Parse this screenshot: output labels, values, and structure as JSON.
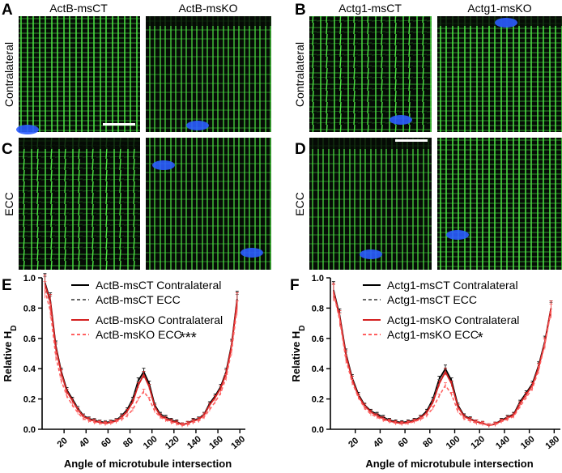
{
  "panel_letters": [
    "A",
    "B",
    "C",
    "D",
    "E",
    "F"
  ],
  "micrograph_columns": [
    "ActB-msCT",
    "ActB-msKO",
    "Actg1-msCT",
    "Actg1-msKO"
  ],
  "micrograph_rows": [
    "Contralateral",
    "ECC"
  ],
  "colors": {
    "microtubules": "#3fd23a",
    "nuclei": "#2b5cff",
    "background": "#050a05",
    "control": "#000000",
    "knockout": "#d42020",
    "control_ecc": "#666666",
    "knockout_ecc": "#ff6060"
  },
  "chart_data": [
    {
      "type": "line",
      "panel": "E",
      "ylabel_main": "Relative H",
      "ylabel_sub": "D",
      "xlabel": "Angle of microtubule intersection",
      "xlim": [
        0,
        185
      ],
      "ylim": [
        0,
        1.0
      ],
      "xticks": [
        "20",
        "40",
        "60",
        "80",
        "100",
        "120",
        "140",
        "160",
        "180"
      ],
      "yticks": [
        "0.0",
        "0.2",
        "0.4",
        "0.6",
        "0.8",
        "1.0"
      ],
      "significance": "***",
      "x": [
        0,
        5,
        10,
        15,
        20,
        25,
        30,
        35,
        40,
        45,
        50,
        55,
        60,
        65,
        70,
        75,
        80,
        85,
        90,
        95,
        100,
        105,
        110,
        115,
        120,
        125,
        130,
        135,
        140,
        145,
        150,
        155,
        160,
        165,
        170,
        175
      ],
      "series": [
        {
          "name": "ActB-msCT Contralateral",
          "color": "#000000",
          "dash": "solid",
          "values": [
            0.97,
            0.85,
            0.55,
            0.38,
            0.26,
            0.2,
            0.14,
            0.09,
            0.07,
            0.06,
            0.05,
            0.045,
            0.05,
            0.06,
            0.09,
            0.13,
            0.2,
            0.32,
            0.38,
            0.3,
            0.16,
            0.1,
            0.08,
            0.06,
            0.05,
            0.03,
            0.04,
            0.06,
            0.07,
            0.1,
            0.17,
            0.22,
            0.28,
            0.38,
            0.56,
            0.86
          ]
        },
        {
          "name": "ActB-msCT ECC",
          "color": "#666666",
          "dash": "dashed",
          "values": [
            0.95,
            0.83,
            0.53,
            0.37,
            0.25,
            0.19,
            0.14,
            0.09,
            0.07,
            0.06,
            0.05,
            0.045,
            0.05,
            0.06,
            0.085,
            0.12,
            0.19,
            0.3,
            0.36,
            0.28,
            0.15,
            0.095,
            0.075,
            0.055,
            0.045,
            0.03,
            0.04,
            0.055,
            0.07,
            0.1,
            0.16,
            0.21,
            0.27,
            0.37,
            0.55,
            0.84
          ]
        },
        {
          "name": "ActB-msKO Contralateral",
          "color": "#d42020",
          "dash": "solid",
          "values": [
            0.96,
            0.84,
            0.54,
            0.37,
            0.25,
            0.19,
            0.13,
            0.085,
            0.065,
            0.055,
            0.045,
            0.04,
            0.045,
            0.055,
            0.08,
            0.12,
            0.18,
            0.29,
            0.36,
            0.28,
            0.15,
            0.09,
            0.07,
            0.055,
            0.045,
            0.03,
            0.04,
            0.055,
            0.065,
            0.095,
            0.16,
            0.21,
            0.27,
            0.37,
            0.55,
            0.85
          ]
        },
        {
          "name": "ActB-msKO ECC",
          "color": "#ff6060",
          "dash": "dashed",
          "values": [
            0.92,
            0.78,
            0.48,
            0.32,
            0.22,
            0.16,
            0.11,
            0.07,
            0.055,
            0.045,
            0.04,
            0.035,
            0.04,
            0.05,
            0.065,
            0.09,
            0.13,
            0.2,
            0.25,
            0.2,
            0.12,
            0.08,
            0.06,
            0.045,
            0.035,
            0.025,
            0.03,
            0.045,
            0.055,
            0.08,
            0.13,
            0.18,
            0.24,
            0.34,
            0.52,
            0.8
          ]
        }
      ]
    },
    {
      "type": "line",
      "panel": "F",
      "ylabel_main": "Relative H",
      "ylabel_sub": "D",
      "xlabel": "Angle of microtubule intersection",
      "xlim": [
        0,
        185
      ],
      "ylim": [
        0,
        1.0
      ],
      "xticks": [
        "20",
        "40",
        "60",
        "80",
        "100",
        "120",
        "140",
        "160",
        "180"
      ],
      "yticks": [
        "0.0",
        "0.2",
        "0.4",
        "0.6",
        "0.8",
        "1.0"
      ],
      "significance": "*",
      "x": [
        0,
        5,
        10,
        15,
        20,
        25,
        30,
        35,
        40,
        45,
        50,
        55,
        60,
        65,
        70,
        75,
        80,
        85,
        90,
        95,
        100,
        105,
        110,
        115,
        120,
        125,
        130,
        135,
        140,
        145,
        150,
        155,
        160,
        165,
        170,
        175
      ],
      "series": [
        {
          "name": "Actg1-msCT Contralateral",
          "color": "#000000",
          "dash": "solid",
          "values": [
            0.92,
            0.75,
            0.5,
            0.34,
            0.23,
            0.16,
            0.12,
            0.1,
            0.08,
            0.06,
            0.05,
            0.045,
            0.05,
            0.06,
            0.08,
            0.12,
            0.2,
            0.33,
            0.4,
            0.32,
            0.16,
            0.09,
            0.07,
            0.05,
            0.04,
            0.025,
            0.035,
            0.06,
            0.08,
            0.1,
            0.18,
            0.24,
            0.3,
            0.42,
            0.58,
            0.8
          ]
        },
        {
          "name": "Actg1-msCT ECC",
          "color": "#666666",
          "dash": "dashed",
          "values": [
            0.9,
            0.73,
            0.48,
            0.33,
            0.22,
            0.155,
            0.115,
            0.095,
            0.075,
            0.055,
            0.045,
            0.04,
            0.045,
            0.055,
            0.075,
            0.11,
            0.19,
            0.31,
            0.38,
            0.3,
            0.15,
            0.085,
            0.065,
            0.05,
            0.04,
            0.025,
            0.035,
            0.055,
            0.075,
            0.095,
            0.17,
            0.23,
            0.29,
            0.41,
            0.57,
            0.79
          ]
        },
        {
          "name": "Actg1-msKO Contralateral",
          "color": "#d42020",
          "dash": "solid",
          "values": [
            0.91,
            0.74,
            0.49,
            0.33,
            0.22,
            0.155,
            0.115,
            0.09,
            0.07,
            0.055,
            0.045,
            0.04,
            0.045,
            0.055,
            0.075,
            0.11,
            0.18,
            0.3,
            0.38,
            0.3,
            0.15,
            0.085,
            0.065,
            0.05,
            0.04,
            0.025,
            0.035,
            0.055,
            0.075,
            0.095,
            0.17,
            0.23,
            0.29,
            0.41,
            0.57,
            0.8
          ]
        },
        {
          "name": "Actg1-msKO ECC",
          "color": "#ff6060",
          "dash": "dashed",
          "values": [
            0.9,
            0.72,
            0.46,
            0.31,
            0.21,
            0.14,
            0.1,
            0.08,
            0.06,
            0.05,
            0.04,
            0.035,
            0.04,
            0.05,
            0.065,
            0.09,
            0.14,
            0.22,
            0.29,
            0.23,
            0.12,
            0.07,
            0.055,
            0.04,
            0.035,
            0.025,
            0.03,
            0.05,
            0.065,
            0.085,
            0.15,
            0.21,
            0.27,
            0.39,
            0.56,
            0.78
          ]
        }
      ]
    }
  ]
}
